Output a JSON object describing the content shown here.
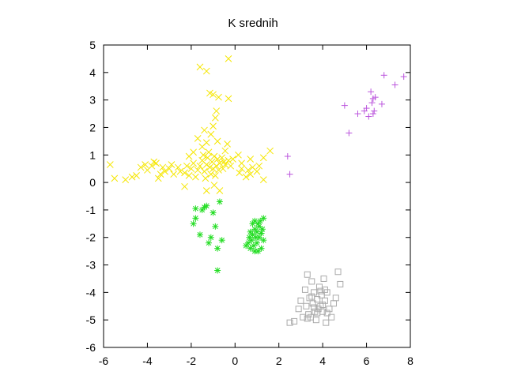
{
  "chart_data": {
    "type": "scatter",
    "title": "K srednih",
    "xlabel": "",
    "ylabel": "",
    "xlim": [
      -6,
      8
    ],
    "ylim": [
      -6,
      5
    ],
    "xticks": [
      -6,
      -4,
      -2,
      0,
      2,
      4,
      6,
      8
    ],
    "yticks": [
      -6,
      -5,
      -4,
      -3,
      -2,
      -1,
      0,
      1,
      2,
      3,
      4,
      5
    ],
    "grid": false,
    "series": [
      {
        "marker": "x",
        "color": "#f5e600",
        "points": [
          [
            -5.7,
            0.65
          ],
          [
            -5.5,
            0.15
          ],
          [
            -5.0,
            0.1
          ],
          [
            -4.7,
            0.2
          ],
          [
            -4.5,
            0.25
          ],
          [
            -4.3,
            0.55
          ],
          [
            -4.1,
            0.65
          ],
          [
            -4.0,
            0.45
          ],
          [
            -3.8,
            0.6
          ],
          [
            -3.7,
            0.75
          ],
          [
            -3.6,
            0.7
          ],
          [
            -3.5,
            0.15
          ],
          [
            -3.4,
            0.3
          ],
          [
            -3.3,
            0.55
          ],
          [
            -3.2,
            0.4
          ],
          [
            -3.0,
            0.5
          ],
          [
            -2.9,
            0.65
          ],
          [
            -2.8,
            0.3
          ],
          [
            -2.6,
            0.55
          ],
          [
            -2.5,
            0.4
          ],
          [
            -2.3,
            0.35
          ],
          [
            -2.2,
            0.6
          ],
          [
            -2.1,
            0.25
          ],
          [
            -2.0,
            0.5
          ],
          [
            -1.9,
            0.7
          ],
          [
            -1.8,
            0.2
          ],
          [
            -1.7,
            0.45
          ],
          [
            -1.6,
            0.6
          ],
          [
            -1.5,
            0.8
          ],
          [
            -1.45,
            1.0
          ],
          [
            -1.4,
            0.4
          ],
          [
            -1.35,
            0.15
          ],
          [
            -1.3,
            0.65
          ],
          [
            -1.25,
            0.9
          ],
          [
            -1.2,
            1.1
          ],
          [
            -1.15,
            0.55
          ],
          [
            -1.1,
            0.3
          ],
          [
            -1.05,
            0.75
          ],
          [
            -1.0,
            0.5
          ],
          [
            -0.95,
            0.95
          ],
          [
            -0.9,
            0.25
          ],
          [
            -0.85,
            0.6
          ],
          [
            -0.8,
            0.85
          ],
          [
            -0.75,
            0.45
          ],
          [
            -0.7,
            0.7
          ],
          [
            -0.6,
            0.9
          ],
          [
            -0.55,
            0.5
          ],
          [
            -0.5,
            0.75
          ],
          [
            -0.45,
            0.65
          ],
          [
            -0.3,
            0.8
          ],
          [
            -0.2,
            0.6
          ],
          [
            -0.1,
            0.85
          ],
          [
            0.2,
            0.35
          ],
          [
            0.3,
            0.7
          ],
          [
            0.5,
            0.2
          ],
          [
            0.6,
            0.45
          ],
          [
            0.7,
            0.3
          ],
          [
            0.8,
            0.55
          ],
          [
            1.0,
            0.4
          ],
          [
            1.1,
            0.6
          ],
          [
            1.3,
            0.9
          ],
          [
            1.6,
            1.15
          ],
          [
            -1.7,
            1.6
          ],
          [
            -1.5,
            1.3
          ],
          [
            -1.4,
            1.9
          ],
          [
            -1.3,
            1.45
          ],
          [
            -1.1,
            1.75
          ],
          [
            -1.0,
            2.05
          ],
          [
            -0.9,
            2.35
          ],
          [
            -0.85,
            2.6
          ],
          [
            -0.75,
            3.1
          ],
          [
            -1.0,
            3.2
          ],
          [
            -1.15,
            3.25
          ],
          [
            -1.6,
            4.2
          ],
          [
            -1.3,
            4.05
          ],
          [
            -0.3,
            4.5
          ],
          [
            -0.3,
            3.05
          ],
          [
            -2.1,
            0.95
          ],
          [
            -1.9,
            1.1
          ],
          [
            -0.8,
            1.5
          ],
          [
            -0.35,
            1.4
          ],
          [
            -0.45,
            1.15
          ],
          [
            0.15,
            1.0
          ],
          [
            0.7,
            0.85
          ],
          [
            1.3,
            0.1
          ],
          [
            -0.7,
            -0.3
          ],
          [
            -0.95,
            -0.1
          ],
          [
            -1.3,
            -0.3
          ],
          [
            -2.3,
            -0.15
          ],
          [
            0.3,
            0.5
          ]
        ]
      },
      {
        "marker": "*",
        "color": "#22dd22",
        "points": [
          [
            -1.9,
            -1.5
          ],
          [
            -1.8,
            -1.3
          ],
          [
            -1.6,
            -1.9
          ],
          [
            -1.5,
            -1.0
          ],
          [
            -1.4,
            -0.9
          ],
          [
            -1.3,
            -0.85
          ],
          [
            -1.2,
            -2.2
          ],
          [
            -1.1,
            -2.0
          ],
          [
            -1.0,
            -1.1
          ],
          [
            -0.9,
            -1.6
          ],
          [
            -0.8,
            -2.4
          ],
          [
            -0.8,
            -3.2
          ],
          [
            -0.7,
            -0.7
          ],
          [
            -0.6,
            -2.1
          ],
          [
            -1.8,
            -0.95
          ],
          [
            0.5,
            -2.3
          ],
          [
            0.6,
            -2.2
          ],
          [
            0.65,
            -2.0
          ],
          [
            0.7,
            -1.8
          ],
          [
            0.75,
            -2.1
          ],
          [
            0.8,
            -1.9
          ],
          [
            0.8,
            -1.5
          ],
          [
            0.85,
            -2.3
          ],
          [
            0.9,
            -1.7
          ],
          [
            0.9,
            -1.4
          ],
          [
            0.95,
            -2.0
          ],
          [
            1.0,
            -2.2
          ],
          [
            1.0,
            -1.8
          ],
          [
            1.05,
            -2.5
          ],
          [
            1.1,
            -1.6
          ],
          [
            1.1,
            -2.0
          ],
          [
            1.15,
            -1.4
          ],
          [
            1.2,
            -2.4
          ],
          [
            1.2,
            -1.85
          ],
          [
            1.25,
            -1.7
          ],
          [
            1.3,
            -2.1
          ],
          [
            1.3,
            -1.3
          ],
          [
            0.9,
            -2.5
          ],
          [
            0.7,
            -2.4
          ],
          [
            1.05,
            -1.5
          ]
        ]
      },
      {
        "marker": "square",
        "color": "#aaaaaa",
        "points": [
          [
            2.5,
            -5.1
          ],
          [
            2.7,
            -5.05
          ],
          [
            2.9,
            -4.6
          ],
          [
            3.0,
            -4.3
          ],
          [
            3.1,
            -4.9
          ],
          [
            3.2,
            -3.9
          ],
          [
            3.25,
            -4.5
          ],
          [
            3.3,
            -3.35
          ],
          [
            3.35,
            -4.8
          ],
          [
            3.4,
            -4.2
          ],
          [
            3.45,
            -4.9
          ],
          [
            3.5,
            -3.6
          ],
          [
            3.55,
            -4.4
          ],
          [
            3.6,
            -4.0
          ],
          [
            3.65,
            -4.7
          ],
          [
            3.7,
            -5.0
          ],
          [
            3.75,
            -4.25
          ],
          [
            3.8,
            -4.6
          ],
          [
            3.85,
            -3.8
          ],
          [
            3.9,
            -4.5
          ],
          [
            3.95,
            -4.1
          ],
          [
            4.0,
            -4.7
          ],
          [
            4.05,
            -3.5
          ],
          [
            4.1,
            -4.3
          ],
          [
            4.15,
            -5.1
          ],
          [
            4.2,
            -4.0
          ],
          [
            4.3,
            -4.6
          ],
          [
            4.4,
            -4.9
          ],
          [
            4.5,
            -4.4
          ],
          [
            4.6,
            -4.2
          ],
          [
            4.7,
            -3.25
          ],
          [
            4.8,
            -3.7
          ],
          [
            3.3,
            -4.95
          ],
          [
            3.6,
            -4.55
          ],
          [
            3.9,
            -3.95
          ],
          [
            4.0,
            -4.45
          ],
          [
            4.2,
            -4.75
          ],
          [
            3.5,
            -4.15
          ],
          [
            3.75,
            -4.75
          ],
          [
            4.1,
            -3.9
          ]
        ]
      },
      {
        "marker": "+",
        "color": "#bb55dd",
        "points": [
          [
            2.4,
            0.95
          ],
          [
            2.5,
            0.3
          ],
          [
            5.0,
            2.8
          ],
          [
            5.2,
            1.8
          ],
          [
            5.6,
            2.5
          ],
          [
            5.9,
            2.6
          ],
          [
            6.0,
            2.7
          ],
          [
            6.1,
            2.4
          ],
          [
            6.2,
            3.3
          ],
          [
            6.25,
            2.9
          ],
          [
            6.3,
            2.5
          ],
          [
            6.35,
            2.6
          ],
          [
            6.4,
            3.1
          ],
          [
            6.7,
            2.85
          ],
          [
            6.8,
            3.9
          ],
          [
            7.3,
            3.55
          ],
          [
            7.7,
            3.85
          ],
          [
            6.3,
            3.05
          ]
        ]
      }
    ]
  }
}
